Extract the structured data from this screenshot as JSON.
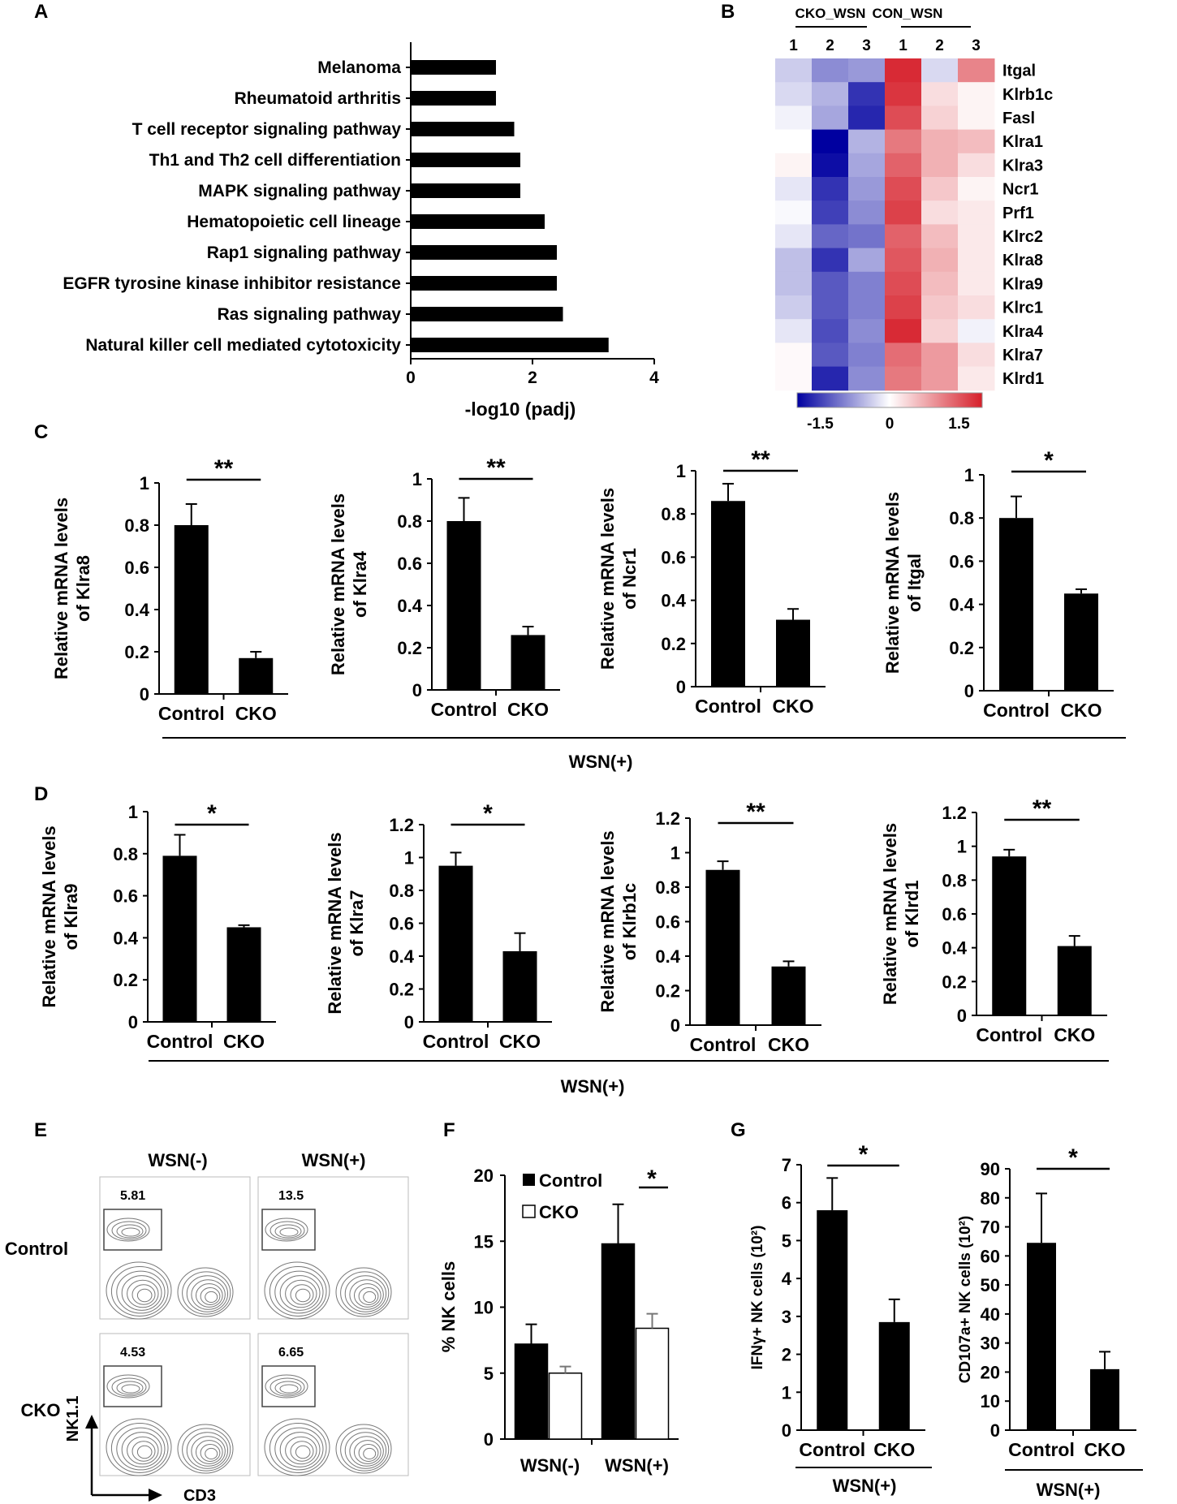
{
  "colors": {
    "bar": "#000000",
    "open": "#ffffff",
    "low": "#0000a0",
    "mid": "#ffffff",
    "high": "#d61f2a"
  },
  "panels": {
    "A": "A",
    "B": "B",
    "C": "C",
    "D": "D",
    "E": "E",
    "F": "F",
    "G": "G"
  },
  "chart_data": [
    {
      "id": "A",
      "type": "bar",
      "orientation": "horizontal",
      "categories": [
        "Melanoma",
        "Rheumatoid arthritis",
        "T cell receptor signaling pathway",
        "Th1 and Th2 cell differentiation",
        "MAPK signaling pathway",
        "Hematopoietic cell lineage",
        "Rap1 signaling pathway",
        "EGFR tyrosine kinase inhibitor resistance",
        "Ras signaling pathway",
        "Natural killer cell mediated cytotoxicity"
      ],
      "values": [
        1.4,
        1.4,
        1.7,
        1.8,
        1.8,
        2.2,
        2.4,
        2.4,
        2.5,
        3.25
      ],
      "xlabel": "-log10 (padj)",
      "xlim": [
        0,
        4
      ],
      "xticks": [
        "0",
        "2",
        "4"
      ]
    },
    {
      "id": "B",
      "type": "heatmap",
      "group_labels": [
        "CKO_WSN",
        "CON_WSN"
      ],
      "columns": [
        "1",
        "2",
        "3",
        "1",
        "2",
        "3"
      ],
      "rows": [
        "Itgal",
        "Klrb1c",
        "Fasl",
        "Klra1",
        "Klra3",
        "Ncr1",
        "Prf1",
        "Klrc2",
        "Klra8",
        "Klra9",
        "Klrc1",
        "Klra4",
        "Klra7",
        "Klrd1"
      ],
      "values": [
        [
          -0.4,
          -0.9,
          -0.8,
          1.9,
          -0.3,
          1.1
        ],
        [
          -0.3,
          -0.6,
          -1.6,
          1.8,
          0.3,
          0.1
        ],
        [
          -0.1,
          -0.7,
          -1.7,
          1.6,
          0.4,
          0.1
        ],
        [
          0.0,
          -2.0,
          -0.6,
          1.2,
          0.7,
          0.6
        ],
        [
          0.1,
          -1.9,
          -0.7,
          1.4,
          0.7,
          0.3
        ],
        [
          -0.2,
          -1.6,
          -0.8,
          1.6,
          0.5,
          0.1
        ],
        [
          -0.05,
          -1.5,
          -0.9,
          1.7,
          0.3,
          0.2
        ],
        [
          -0.2,
          -1.2,
          -1.1,
          1.4,
          0.6,
          0.2
        ],
        [
          -0.5,
          -1.6,
          -0.7,
          1.5,
          0.7,
          0.2
        ],
        [
          -0.5,
          -1.3,
          -1.0,
          1.6,
          0.6,
          0.2
        ],
        [
          -0.4,
          -1.3,
          -1.0,
          1.7,
          0.5,
          0.3
        ],
        [
          -0.2,
          -1.4,
          -0.9,
          1.9,
          0.4,
          -0.1
        ],
        [
          0.05,
          -1.3,
          -1.0,
          1.3,
          0.9,
          0.3
        ],
        [
          0.05,
          -1.7,
          -0.9,
          1.2,
          0.9,
          0.2
        ]
      ],
      "colorbar": {
        "min": -2.0,
        "max": 2.0,
        "ticks": [
          "-1.5",
          "0",
          "1.5"
        ]
      }
    },
    {
      "id": "C1",
      "type": "bar",
      "categories": [
        "Control",
        "CKO"
      ],
      "values": [
        0.8,
        0.17
      ],
      "errors": [
        0.1,
        0.03
      ],
      "ylabel_lines": [
        "Relative mRNA levels",
        "of Klra8"
      ],
      "ylim": [
        0,
        1
      ],
      "yticks": [
        "0",
        "0.2",
        "0.4",
        "0.6",
        "0.8",
        "1"
      ],
      "sig": "**"
    },
    {
      "id": "C2",
      "type": "bar",
      "categories": [
        "Control",
        "CKO"
      ],
      "values": [
        0.8,
        0.26
      ],
      "errors": [
        0.11,
        0.04
      ],
      "ylabel_lines": [
        "Relative mRNA levels",
        "of Klra4"
      ],
      "ylim": [
        0,
        1
      ],
      "yticks": [
        "0",
        "0.2",
        "0.4",
        "0.6",
        "0.8",
        "1"
      ],
      "sig": "**"
    },
    {
      "id": "C3",
      "type": "bar",
      "categories": [
        "Control",
        "CKO"
      ],
      "values": [
        0.86,
        0.31
      ],
      "errors": [
        0.08,
        0.05
      ],
      "ylabel_lines": [
        "Relative mRNA levels",
        "of Ncr1"
      ],
      "ylim": [
        0,
        1
      ],
      "yticks": [
        "0",
        "0.2",
        "0.4",
        "0.6",
        "0.8",
        "1"
      ],
      "sig": "**"
    },
    {
      "id": "C4",
      "type": "bar",
      "categories": [
        "Control",
        "CKO"
      ],
      "values": [
        0.8,
        0.45
      ],
      "errors": [
        0.1,
        0.02
      ],
      "ylabel_lines": [
        "Relative mRNA levels",
        "of Itgal"
      ],
      "ylim": [
        0,
        1
      ],
      "yticks": [
        "0",
        "0.2",
        "0.4",
        "0.6",
        "0.8",
        "1"
      ],
      "sig": "*"
    },
    {
      "id": "D1",
      "type": "bar",
      "categories": [
        "Control",
        "CKO"
      ],
      "values": [
        0.79,
        0.45
      ],
      "errors": [
        0.1,
        0.01
      ],
      "ylabel_lines": [
        "Relative mRNA levels",
        "of Klra9"
      ],
      "ylim": [
        0,
        1
      ],
      "yticks": [
        "0",
        "0.2",
        "0.4",
        "0.6",
        "0.8",
        "1"
      ],
      "sig": "*"
    },
    {
      "id": "D2",
      "type": "bar",
      "categories": [
        "Control",
        "CKO"
      ],
      "values": [
        0.95,
        0.43
      ],
      "errors": [
        0.08,
        0.11
      ],
      "ylabel_lines": [
        "Relative mRNA levels",
        "of Klra7"
      ],
      "ylim": [
        0,
        1.2
      ],
      "yticks": [
        "0",
        "0.2",
        "0.4",
        "0.6",
        "0.8",
        "1",
        "1.2"
      ],
      "sig": "*"
    },
    {
      "id": "D3",
      "type": "bar",
      "categories": [
        "Control",
        "CKO"
      ],
      "values": [
        0.9,
        0.34
      ],
      "errors": [
        0.05,
        0.03
      ],
      "ylabel_lines": [
        "Relative mRNA levels",
        "of Klrb1c"
      ],
      "ylim": [
        0,
        1.2
      ],
      "yticks": [
        "0",
        "0.2",
        "0.4",
        "0.6",
        "0.8",
        "1",
        "1.2"
      ],
      "sig": "**"
    },
    {
      "id": "D4",
      "type": "bar",
      "categories": [
        "Control",
        "CKO"
      ],
      "values": [
        0.94,
        0.41
      ],
      "errors": [
        0.04,
        0.06
      ],
      "ylabel_lines": [
        "Relative mRNA levels",
        "of Klrd1"
      ],
      "ylim": [
        0,
        1.2
      ],
      "yticks": [
        "0",
        "0.2",
        "0.4",
        "0.6",
        "0.8",
        "1",
        "1.2"
      ],
      "sig": "**"
    },
    {
      "id": "E",
      "type": "scatter",
      "subtype": "flow-cytometry-contour",
      "columns": [
        "WSN(-)",
        "WSN(+)"
      ],
      "rows": [
        "Control",
        "CKO"
      ],
      "gate_percent": [
        [
          "5.81",
          "13.5"
        ],
        [
          "4.53",
          "6.65"
        ]
      ],
      "xlabel": "CD3",
      "ylabel": "NK1.1"
    },
    {
      "id": "F",
      "type": "bar",
      "categories": [
        "WSN(-)",
        "WSN(+)"
      ],
      "series": [
        {
          "name": "Control",
          "values": [
            7.2,
            14.8
          ],
          "errors": [
            1.5,
            3.0
          ]
        },
        {
          "name": "CKO",
          "values": [
            5.0,
            8.4
          ],
          "errors": [
            0.5,
            1.1
          ]
        }
      ],
      "ylabel": "% NK cells",
      "ylim": [
        0,
        20
      ],
      "yticks": [
        "0",
        "5",
        "10",
        "15",
        "20"
      ],
      "sig": "*"
    },
    {
      "id": "G1",
      "type": "bar",
      "categories": [
        "Control",
        "CKO"
      ],
      "values": [
        5.8,
        2.85
      ],
      "errors": [
        0.85,
        0.6
      ],
      "ylabel": "IFNγ+ NK cells (10²)",
      "ylim": [
        0,
        7
      ],
      "yticks": [
        "0",
        "1",
        "2",
        "3",
        "4",
        "5",
        "6",
        "7"
      ],
      "sig": "*"
    },
    {
      "id": "G2",
      "type": "bar",
      "categories": [
        "Control",
        "CKO"
      ],
      "values": [
        64.5,
        21.0
      ],
      "errors": [
        17.0,
        6.0
      ],
      "ylabel": "CD107a+ NK cells (10²)",
      "ylim": [
        0,
        90
      ],
      "yticks": [
        "0",
        "10",
        "20",
        "30",
        "40",
        "50",
        "60",
        "70",
        "80",
        "90"
      ],
      "sig": "*"
    }
  ],
  "group_labels": {
    "C": "WSN(+)",
    "D": "WSN(+)",
    "G1": "WSN(+)",
    "G2": "WSN(+)"
  }
}
